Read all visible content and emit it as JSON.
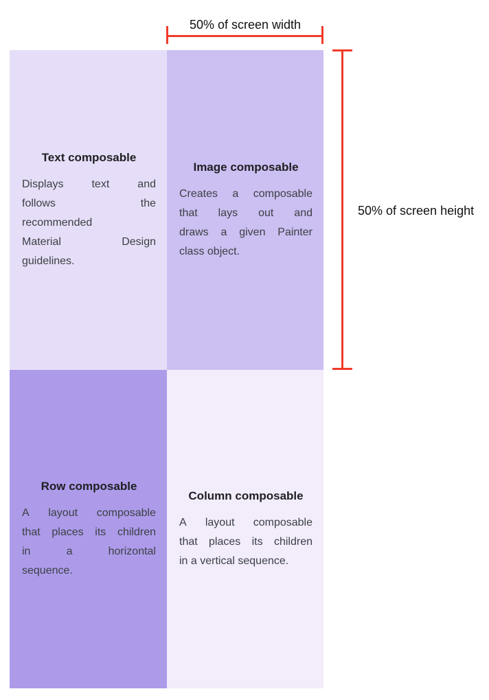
{
  "annotations": {
    "width_label": "50% of screen width",
    "height_label": "50% of screen height",
    "line_color": "#EF3B2A"
  },
  "colors": {
    "quadrant_text_bg": "#E6DEF8",
    "quadrant_image_bg": "#CCBFF2",
    "quadrant_row_bg": "#AD9BEA",
    "quadrant_column_bg": "#F2ECFB",
    "measurement_red": "#EF3B2A"
  },
  "quadrants": [
    {
      "title": "Text composable",
      "lines": [
        "Displays text and",
        "follows the",
        "recommended",
        "Material Design",
        "guidelines."
      ],
      "bg": "#E6DEF8"
    },
    {
      "title": "Image composable",
      "lines": [
        "Creates a composable",
        "that lays out and",
        "draws a given Painter",
        "class object."
      ],
      "bg": "#CCBFF2"
    },
    {
      "title": "Row composable",
      "lines": [
        "A layout composable",
        "that places its children",
        "in a horizontal",
        "sequence."
      ],
      "bg": "#AD9BEA"
    },
    {
      "title": "Column composable",
      "lines": [
        "A layout composable",
        "that places its children",
        "in a vertical sequence."
      ],
      "bg": "#F2ECFB"
    }
  ]
}
